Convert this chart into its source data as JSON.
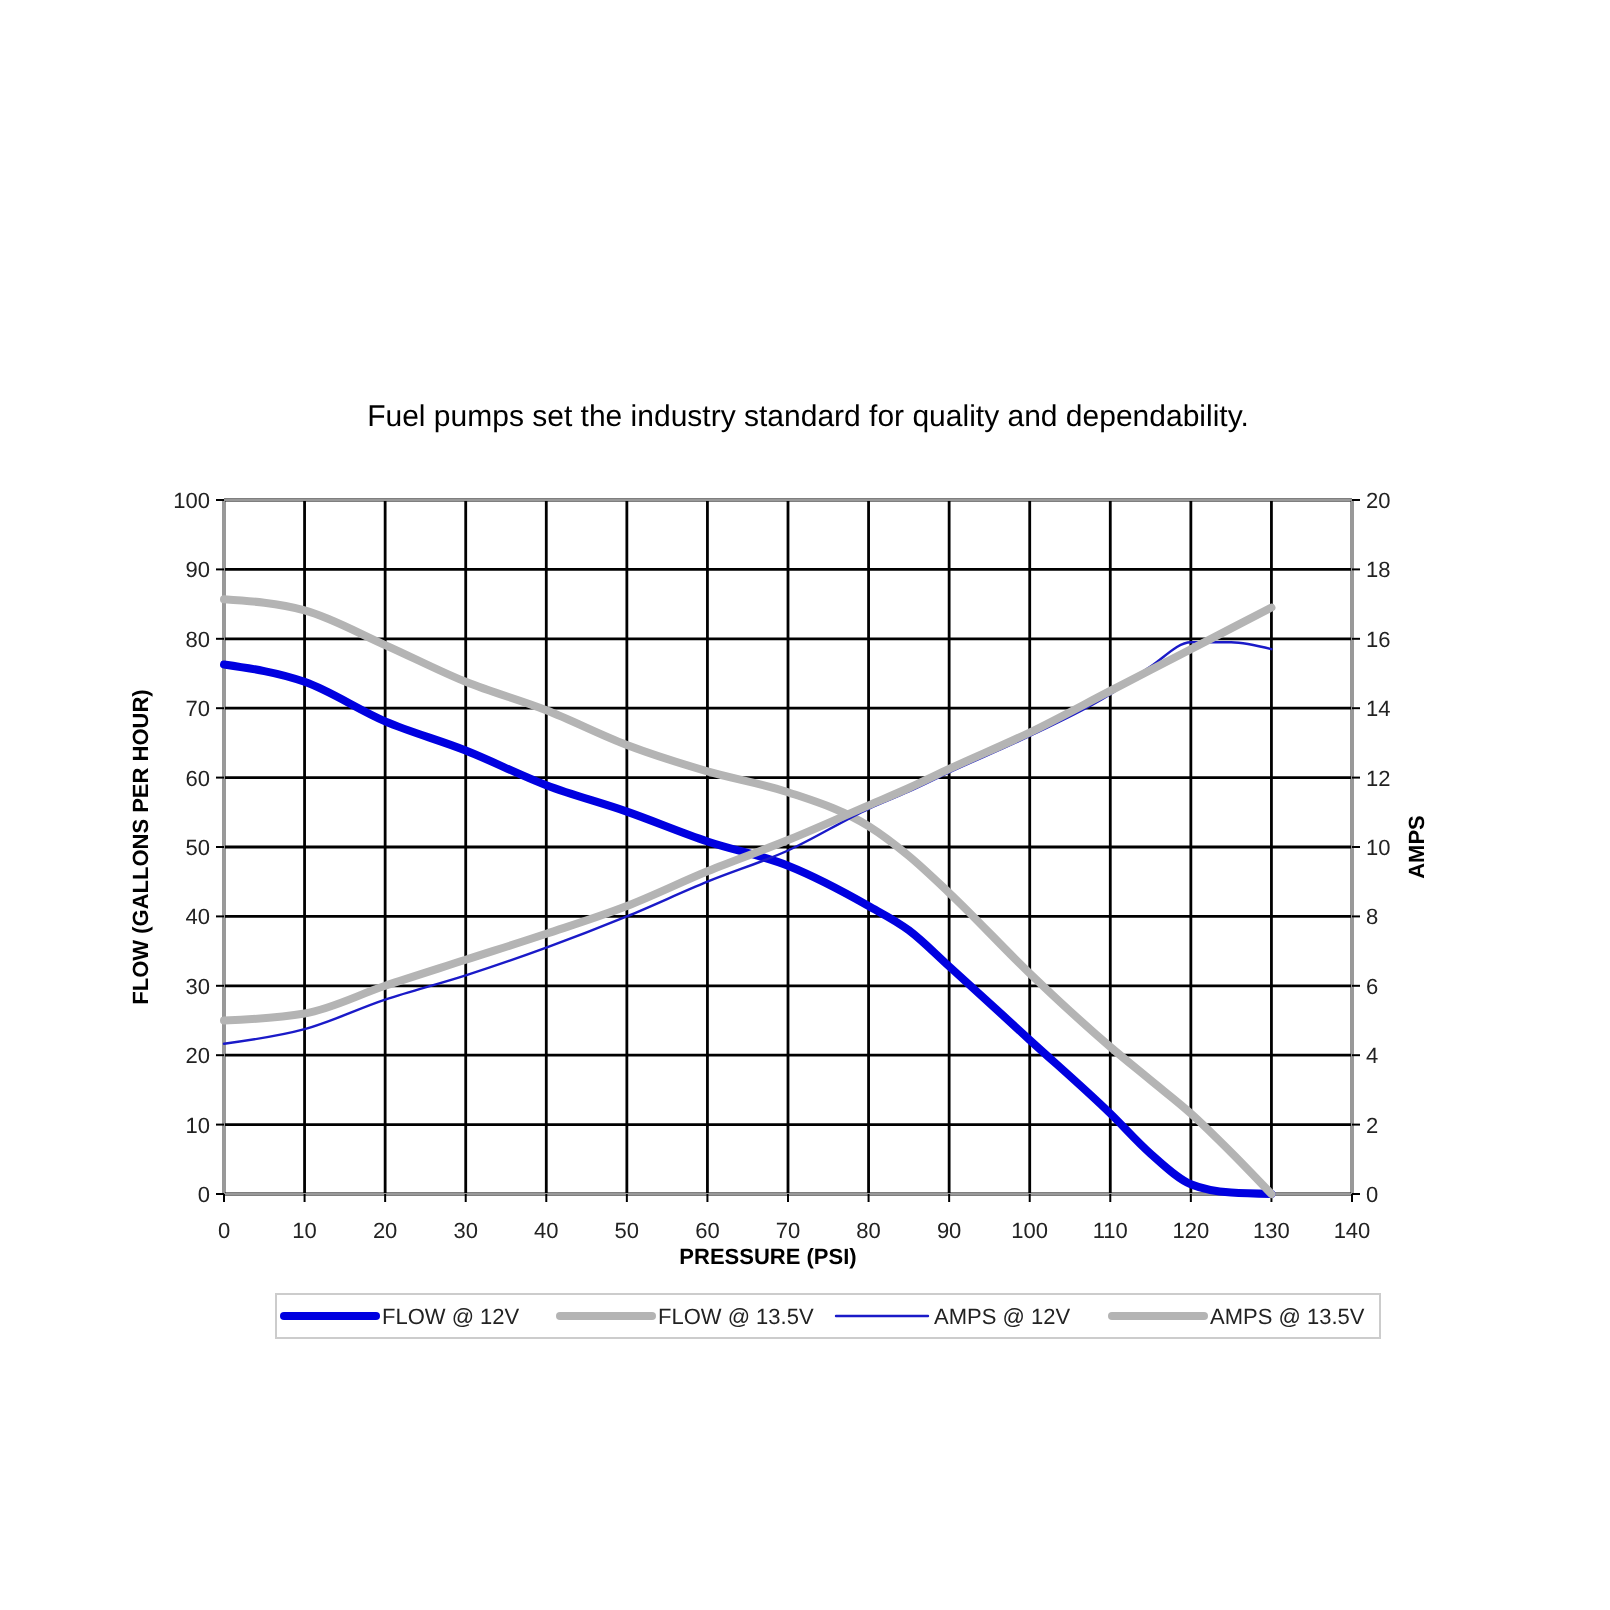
{
  "chart_data": {
    "type": "line",
    "title": "Fuel pumps set the industry standard for quality and dependability.",
    "xlabel": "PRESSURE (PSI)",
    "ylabel": "FLOW (GALLONS PER HOUR)",
    "y2label": "AMPS",
    "x": [
      0,
      10,
      20,
      30,
      40,
      50,
      60,
      70,
      80,
      85,
      90,
      100,
      110,
      115,
      120,
      125,
      130
    ],
    "series": [
      {
        "name": "FLOW @ 12V",
        "color": "#0000e0",
        "values": [
          76.3,
          73.8,
          68.1,
          63.9,
          58.9,
          55.1,
          50.8,
          47.3,
          41.5,
          38,
          32.8,
          22.2,
          11.6,
          5.8,
          1.4,
          0.2,
          0
        ]
      },
      {
        "name": "FLOW @ 13.5V",
        "color": "#b4b4b4",
        "values": [
          85.7,
          84.1,
          79.1,
          73.8,
          69.7,
          64.7,
          60.9,
          57.9,
          53,
          48.7,
          43.4,
          31.8,
          21.2,
          16.4,
          11.6,
          6,
          0
        ]
      },
      {
        "name": "AMPS @ 12V",
        "color": "#1a1ac8",
        "axis": "y2",
        "values": [
          4.33,
          4.75,
          5.6,
          6.3,
          7.1,
          8,
          9,
          9.9,
          11.1,
          11.6,
          12.15,
          13.2,
          14.4,
          15.2,
          15.9,
          15.9,
          15.7
        ]
      },
      {
        "name": "AMPS @ 13.5V",
        "color": "#b4b4b4",
        "axis": "y2",
        "values": [
          5,
          5.2,
          6,
          6.75,
          7.5,
          8.3,
          9.3,
          10.2,
          11.2,
          11.7,
          12.25,
          13.3,
          14.5,
          15.1,
          15.7,
          16.3,
          16.9
        ]
      }
    ],
    "xlim": [
      0,
      140
    ],
    "xticks": [
      0,
      10,
      20,
      30,
      40,
      50,
      60,
      70,
      80,
      90,
      100,
      110,
      120,
      130,
      140
    ],
    "ylim": [
      0,
      100
    ],
    "yticks": [
      0,
      10,
      20,
      30,
      40,
      50,
      60,
      70,
      80,
      90,
      100
    ],
    "y2lim": [
      0,
      20
    ],
    "y2ticks": [
      0,
      2,
      4,
      6,
      8,
      10,
      12,
      14,
      16,
      18,
      20
    ],
    "grid": true,
    "legend": "bottom",
    "marker": "none",
    "line_style": "solid"
  }
}
